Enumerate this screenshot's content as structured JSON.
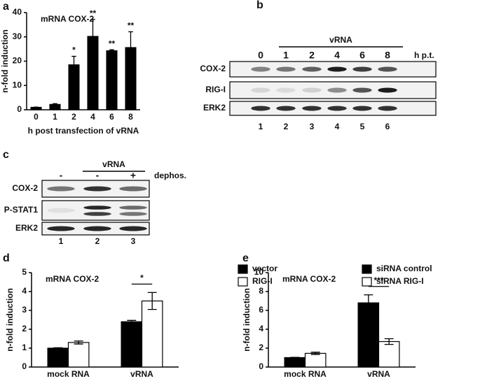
{
  "chart_data": [
    {
      "type": "bar",
      "panel": "a",
      "title": "mRNA COX-2",
      "ylabel": "n-fold induction",
      "xlabel": "h post transfection of vRNA",
      "categories": [
        "0",
        "1",
        "2",
        "4",
        "6",
        "8"
      ],
      "values": [
        1,
        2.2,
        18.5,
        30.2,
        24.3,
        25.6
      ],
      "errors": [
        0.1,
        0.3,
        3.5,
        7,
        0.4,
        6.5
      ],
      "significance": [
        null,
        null,
        "*",
        "**",
        "**",
        "**"
      ],
      "color": "#000000",
      "ylim": [
        0,
        40
      ],
      "yticks": [
        0,
        10,
        20,
        30,
        40
      ]
    },
    {
      "type": "bar",
      "panel": "d",
      "title": "mRNA COX-2",
      "ylabel": "n-fold induction",
      "categories": [
        "mock RNA",
        "vRNA"
      ],
      "series": [
        {
          "name": "vector",
          "color": "#000000",
          "values": [
            1.0,
            2.4
          ],
          "errors": [
            0.02,
            0.07
          ]
        },
        {
          "name": "RIG-I",
          "color": "#ffffff",
          "values": [
            1.3,
            3.5
          ],
          "errors": [
            0.08,
            0.45
          ]
        }
      ],
      "significance": [
        null,
        "*"
      ],
      "ylim": [
        0,
        5
      ],
      "yticks": [
        0,
        1,
        2,
        3,
        4,
        5
      ]
    },
    {
      "type": "bar",
      "panel": "e",
      "title": "mRNA COX-2",
      "ylabel": "n-fold induction",
      "categories": [
        "mock RNA",
        "vRNA"
      ],
      "series": [
        {
          "name": "siRNA control",
          "color": "#000000",
          "values": [
            1.0,
            6.8
          ],
          "errors": [
            0.03,
            0.85
          ]
        },
        {
          "name": "siRNA RIG-I",
          "color": "#ffffff",
          "values": [
            1.45,
            2.7
          ],
          "errors": [
            0.12,
            0.3
          ]
        }
      ],
      "significance": [
        null,
        "***"
      ],
      "ylim": [
        0,
        10
      ],
      "yticks": [
        0,
        2,
        4,
        6,
        8,
        10
      ]
    }
  ],
  "blots": [
    {
      "panel": "b",
      "group_label": "vRNA",
      "lane_headers": [
        "0",
        "1",
        "2",
        "4",
        "6",
        "8"
      ],
      "header_unit": "h p.t.",
      "rows": [
        "COX-2",
        "RIG-I",
        "ERK2"
      ],
      "lane_numbers": [
        "1",
        "2",
        "3",
        "4",
        "5",
        "6"
      ]
    },
    {
      "panel": "c",
      "group_label": "vRNA",
      "lane_headers": [
        "-",
        "-",
        "+"
      ],
      "header_unit": "dephos.",
      "rows": [
        "COX-2",
        "P-STAT1",
        "ERK2"
      ],
      "lane_numbers": [
        "1",
        "2",
        "3"
      ]
    }
  ]
}
